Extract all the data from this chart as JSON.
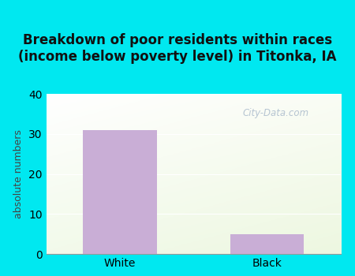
{
  "title": "Breakdown of poor residents within races\n(income below poverty level) in Titonka, IA",
  "categories": [
    "White",
    "Black"
  ],
  "values": [
    31,
    5
  ],
  "bar_color": "#c9aed6",
  "ylabel": "absolute numbers",
  "ylim": [
    0,
    40
  ],
  "yticks": [
    0,
    10,
    20,
    30,
    40
  ],
  "background_outer": "#00e8f0",
  "title_fontsize": 12,
  "axis_label_fontsize": 9,
  "tick_fontsize": 10,
  "bar_width": 0.5,
  "watermark": "City-Data.com"
}
